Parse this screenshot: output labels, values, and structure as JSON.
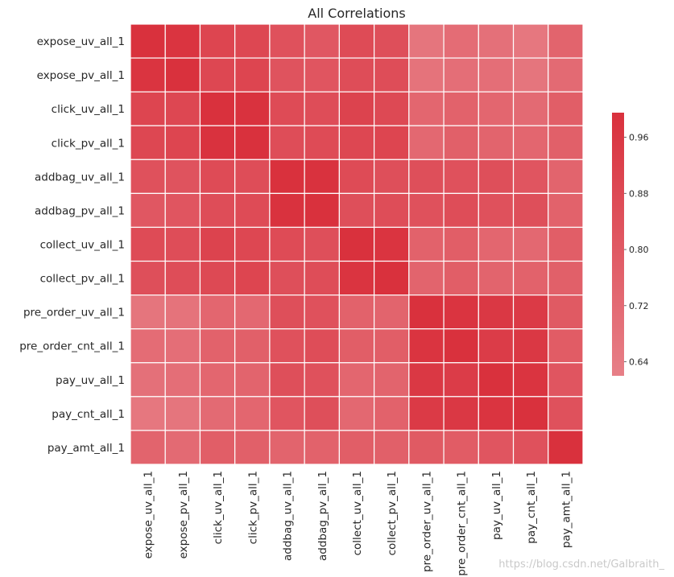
{
  "chart_data": {
    "type": "heatmap",
    "title": "All Correlations",
    "labels": [
      "expose_uv_all_1",
      "expose_pv_all_1",
      "click_uv_all_1",
      "click_pv_all_1",
      "addbag_uv_all_1",
      "addbag_pv_all_1",
      "collect_uv_all_1",
      "collect_pv_all_1",
      "pre_order_uv_all_1",
      "pre_order_cnt_all_1",
      "pay_uv_all_1",
      "pay_cnt_all_1",
      "pay_amt_all_1"
    ],
    "values": [
      [
        1.0,
        0.98,
        0.9,
        0.89,
        0.84,
        0.81,
        0.87,
        0.85,
        0.67,
        0.71,
        0.69,
        0.66,
        0.75
      ],
      [
        0.98,
        1.0,
        0.89,
        0.9,
        0.83,
        0.82,
        0.86,
        0.86,
        0.68,
        0.7,
        0.7,
        0.67,
        0.72
      ],
      [
        0.9,
        0.89,
        1.0,
        0.99,
        0.87,
        0.86,
        0.91,
        0.88,
        0.74,
        0.76,
        0.74,
        0.72,
        0.78
      ],
      [
        0.89,
        0.9,
        0.99,
        1.0,
        0.86,
        0.87,
        0.89,
        0.9,
        0.73,
        0.77,
        0.75,
        0.74,
        0.77
      ],
      [
        0.84,
        0.83,
        0.87,
        0.86,
        1.0,
        0.99,
        0.87,
        0.85,
        0.85,
        0.84,
        0.85,
        0.82,
        0.75
      ],
      [
        0.81,
        0.82,
        0.86,
        0.87,
        0.99,
        1.0,
        0.85,
        0.86,
        0.84,
        0.86,
        0.84,
        0.85,
        0.76
      ],
      [
        0.87,
        0.86,
        0.91,
        0.89,
        0.87,
        0.85,
        1.0,
        0.98,
        0.76,
        0.78,
        0.74,
        0.73,
        0.78
      ],
      [
        0.85,
        0.86,
        0.88,
        0.9,
        0.85,
        0.86,
        0.98,
        1.0,
        0.75,
        0.78,
        0.75,
        0.76,
        0.77
      ],
      [
        0.67,
        0.68,
        0.74,
        0.73,
        0.85,
        0.84,
        0.76,
        0.75,
        1.0,
        0.98,
        0.96,
        0.95,
        0.8
      ],
      [
        0.71,
        0.7,
        0.76,
        0.77,
        0.84,
        0.86,
        0.78,
        0.78,
        0.98,
        1.0,
        0.94,
        0.96,
        0.79
      ],
      [
        0.69,
        0.7,
        0.74,
        0.75,
        0.85,
        0.84,
        0.74,
        0.75,
        0.96,
        0.94,
        1.0,
        0.98,
        0.82
      ],
      [
        0.66,
        0.67,
        0.72,
        0.74,
        0.82,
        0.85,
        0.73,
        0.76,
        0.95,
        0.96,
        0.98,
        1.0,
        0.84
      ],
      [
        0.75,
        0.72,
        0.78,
        0.77,
        0.75,
        0.76,
        0.78,
        0.77,
        0.8,
        0.79,
        0.82,
        0.84,
        1.0
      ]
    ],
    "colorbar": {
      "range": [
        0.62,
        0.995
      ],
      "ticks": [
        "0.96",
        "0.88",
        "0.80",
        "0.72",
        "0.64"
      ],
      "tick_values": [
        0.96,
        0.88,
        0.8,
        0.72,
        0.64
      ]
    },
    "colors": {
      "low": "#e77f87",
      "high": "#d9313d",
      "grid": "#ffffff"
    },
    "grid": true
  },
  "watermark": "https://blog.csdn.net/Galbraith_"
}
